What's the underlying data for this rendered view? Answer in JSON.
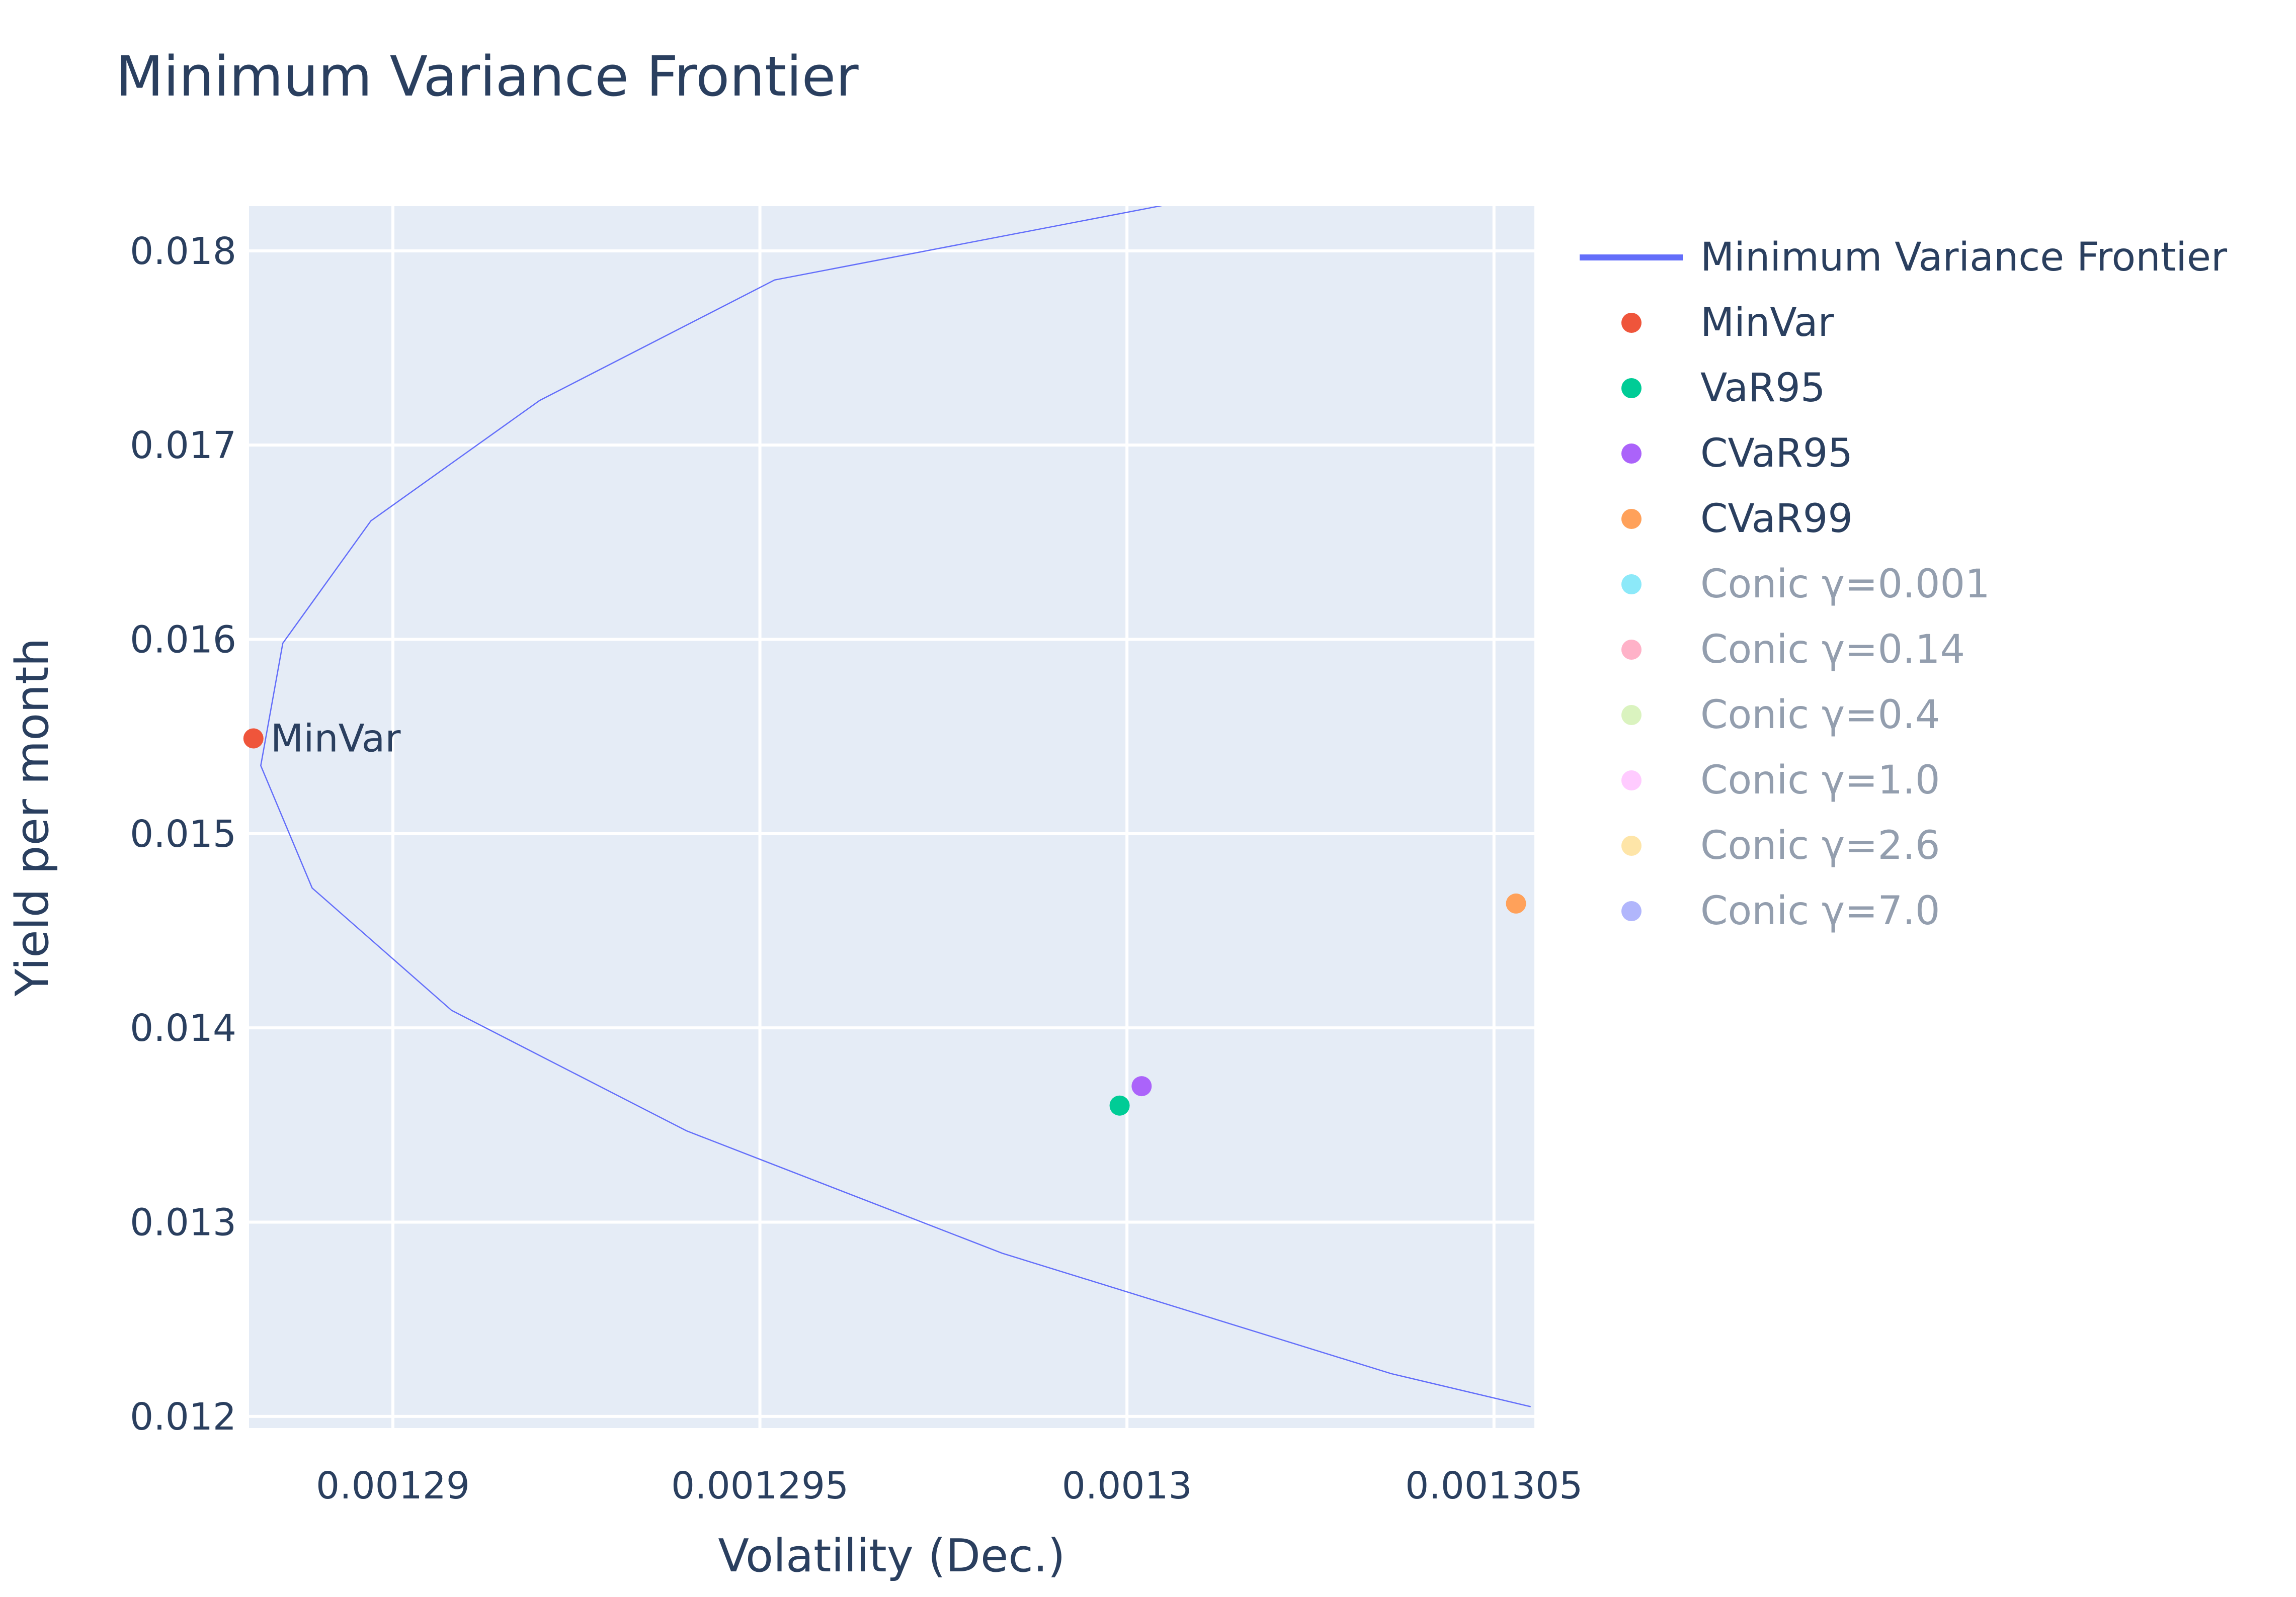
{
  "chart_data": {
    "type": "scatter",
    "title": "Minimum Variance Frontier",
    "xlabel": "Volatility (Dec.)",
    "ylabel": "Yield per month",
    "xlim": [
      0.00128804,
      0.00130555
    ],
    "ylim": [
      0.01194,
      0.01823
    ],
    "x_ticks": [
      {
        "value": 0.00129,
        "label": "0.00129"
      },
      {
        "value": 0.001295,
        "label": "0.001295"
      },
      {
        "value": 0.0013,
        "label": "0.0013"
      },
      {
        "value": 0.001305,
        "label": "0.001305"
      }
    ],
    "y_ticks": [
      {
        "value": 0.012,
        "label": "0.012"
      },
      {
        "value": 0.013,
        "label": "0.013"
      },
      {
        "value": 0.014,
        "label": "0.014"
      },
      {
        "value": 0.015,
        "label": "0.015"
      },
      {
        "value": 0.016,
        "label": "0.016"
      },
      {
        "value": 0.017,
        "label": "0.017"
      },
      {
        "value": 0.018,
        "label": "0.018"
      }
    ],
    "grid": true,
    "legend_position": "right",
    "frontier": {
      "name": "Minimum Variance Frontier",
      "color": "#636efa",
      "points": [
        [
          0.0013014,
          0.0183
        ],
        [
          0.0012952,
          0.01785
        ],
        [
          0.001292,
          0.01723
        ],
        [
          0.0012897,
          0.01661
        ],
        [
          0.0012885,
          0.01598
        ],
        [
          0.0012882,
          0.01535
        ],
        [
          0.0012889,
          0.01472
        ],
        [
          0.0012908,
          0.01409
        ],
        [
          0.001294,
          0.01347
        ],
        [
          0.0012983,
          0.01284
        ],
        [
          0.0013036,
          0.01222
        ],
        [
          0.0013055,
          0.01205
        ]
      ]
    },
    "series": [
      {
        "name": "MinVar",
        "color": "#ef553b",
        "x": 0.0012881,
        "y": 0.01549,
        "label": "MinVar",
        "visible": true
      },
      {
        "name": "VaR95",
        "color": "#00cc96",
        "x": 0.0012999,
        "y": 0.0136,
        "visible": true
      },
      {
        "name": "CVaR95",
        "color": "#ab63fa",
        "x": 0.0013002,
        "y": 0.0137,
        "visible": true
      },
      {
        "name": "CVaR99",
        "color": "#ffa15a",
        "x": 0.0013053,
        "y": 0.01464,
        "visible": true
      },
      {
        "name": "Conic γ=0.001",
        "color": "#19d3f3",
        "visible": false
      },
      {
        "name": "Conic γ=0.14",
        "color": "#ff6692",
        "visible": false
      },
      {
        "name": "Conic γ=0.4",
        "color": "#b6e880",
        "visible": false
      },
      {
        "name": "Conic γ=1.0",
        "color": "#ff97ff",
        "visible": false
      },
      {
        "name": "Conic γ=2.6",
        "color": "#fecb52",
        "visible": false
      },
      {
        "name": "Conic γ=7.0",
        "color": "#636efa",
        "visible": false
      }
    ]
  }
}
